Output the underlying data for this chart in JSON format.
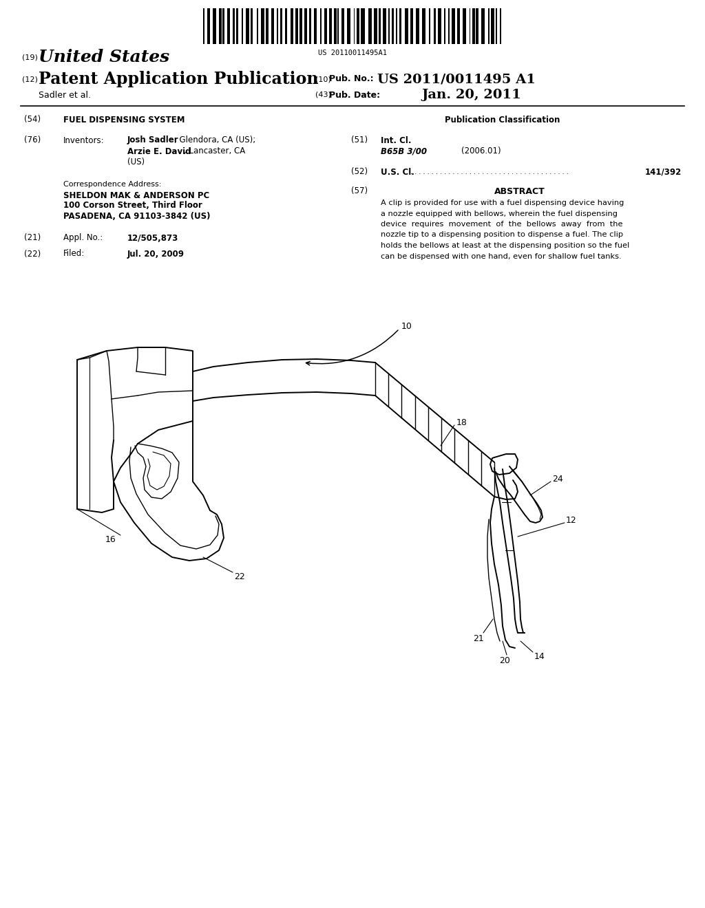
{
  "title": "FUEL DISPENSING SYSTEM",
  "patent_number": "US 2011/0011495 A1",
  "pub_date": "Jan. 20, 2011",
  "barcode_text": "US 20110011495A1",
  "country": "United States",
  "kind_19": "(19)",
  "kind_12": "(12)",
  "kind_10": "(10)",
  "kind_43": "(43)",
  "pub_label": "Patent Application Publication",
  "pub_no_label": "Pub. No.:",
  "pub_date_label": "Pub. Date:",
  "inventors_num": "(76)",
  "inventor1_bold": "Josh Sadler",
  "inventor1_rest": ", Glendora, CA (US);",
  "inventor2_bold": "Arzie E. David",
  "inventor2_rest": ", Lancaster, CA",
  "inventor3": "(US)",
  "corr_label": "Correspondence Address:",
  "corr_line1": "SHELDON MAK & ANDERSON PC",
  "corr_line2": "100 Corson Street, Third Floor",
  "corr_line3": "PASADENA, CA 91103-3842 (US)",
  "appl_no_num": "(21)",
  "appl_no_label": "Appl. No.:",
  "appl_no_val": "12/505,873",
  "filed_num": "(22)",
  "filed_label": "Filed:",
  "filed_val": "Jul. 20, 2009",
  "title_num": "(54)",
  "sadler_label": "Sadler et al.",
  "pub_class_label": "Publication Classification",
  "int_cl_num": "(51)",
  "int_cl_label": "Int. Cl.",
  "int_cl_val": "B65B 3/00",
  "int_cl_year": "(2006.01)",
  "us_cl_num": "(52)",
  "us_cl_label": "U.S. Cl.",
  "us_cl_val": "141/392",
  "abstract_num": "(57)",
  "abstract_label": "ABSTRACT",
  "bg_color": "#ffffff",
  "text_color": "#000000"
}
